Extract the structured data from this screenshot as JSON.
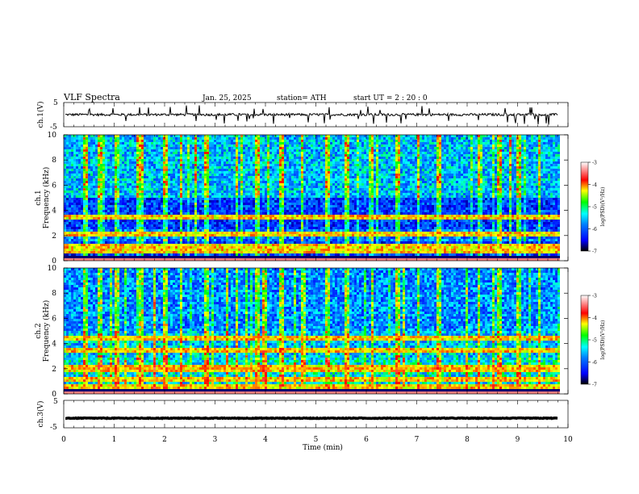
{
  "header": {
    "title": "VLF  Spectra",
    "date": "Jan. 25, 2025",
    "station": "station= ATH",
    "start_ut": "start  UT  =   2  : 20 : 0"
  },
  "chart_data": [
    {
      "type": "line",
      "name": "ch1-waveform",
      "ylabel": "ch.1(V)",
      "yticks": [
        "5",
        "-5"
      ],
      "ylim": [
        -5,
        5
      ],
      "xlim": [
        0,
        9.8
      ],
      "baseline": 0,
      "noise": "small oscillation around 0 with occasional spikes"
    },
    {
      "type": "heatmap",
      "name": "ch1-spectrogram",
      "ylabel": "ch.1\nFrequency  (kHz)",
      "ylabel_lines": [
        "ch.1",
        "Frequency  (kHz)"
      ],
      "yticks": [
        "0",
        "2",
        "4",
        "6",
        "8",
        "10"
      ],
      "ylim": [
        0,
        10
      ],
      "xlim": [
        0,
        9.8
      ],
      "colorbar": {
        "label": "log(PSD)(V²/Hz)",
        "ticks": [
          "-3",
          "-4",
          "-5",
          "-6",
          "-7"
        ],
        "range": [
          -7,
          -3
        ]
      },
      "bands_khz": [
        3.6,
        2.2,
        1.3,
        0.9,
        0.3
      ],
      "spike_times_min": [
        0.4,
        0.7,
        1.0,
        1.5,
        2.0,
        2.3,
        2.8,
        3.4,
        3.8,
        4.3,
        4.7,
        5.2,
        5.6,
        6.1,
        6.6,
        7.0,
        7.4,
        8.2,
        8.6,
        9.0,
        9.4
      ]
    },
    {
      "type": "heatmap",
      "name": "ch2-spectrogram",
      "ylabel": "ch.2\nFrequency  (kHz)",
      "ylabel_lines": [
        "ch.2",
        "Frequency  (kHz)"
      ],
      "yticks": [
        "0",
        "2",
        "4",
        "6",
        "8",
        "10"
      ],
      "ylim": [
        0,
        10
      ],
      "xlim": [
        0,
        9.8
      ],
      "colorbar": {
        "label": "log(PSD)(V²/Hz)",
        "ticks": [
          "-3",
          "-4",
          "-5",
          "-6",
          "-7"
        ],
        "range": [
          -7,
          -3
        ]
      },
      "bands_khz": [
        4.6,
        3.6,
        2.2,
        2.0,
        1.2,
        0.6
      ],
      "spike_times_min": [
        0.4,
        0.7,
        1.0,
        1.5,
        2.0,
        2.3,
        2.8,
        3.4,
        3.8,
        4.3,
        4.7,
        5.2,
        5.6,
        6.1,
        6.6,
        7.0,
        7.4,
        8.2,
        8.6,
        9.0,
        9.4
      ]
    },
    {
      "type": "line",
      "name": "ch3-waveform",
      "ylabel": "ch.3(V)",
      "yticks": [
        "5",
        "-5"
      ],
      "ylim": [
        -5,
        5
      ],
      "xlim": [
        0,
        9.8
      ],
      "baseline": -1.5,
      "noise": "flat thick trace"
    }
  ],
  "xaxis": {
    "label": "Time  (min)",
    "ticks": [
      "0",
      "1",
      "2",
      "3",
      "4",
      "5",
      "6",
      "7",
      "8",
      "9",
      "10"
    ],
    "range": [
      0,
      10
    ]
  },
  "colors": {
    "spectro_scale": [
      "#000080",
      "#0000ff",
      "#0080ff",
      "#00ffff",
      "#80ff80",
      "#ffff00",
      "#ff8000",
      "#ff0000",
      "#ffffff"
    ],
    "waveform": "#000000"
  }
}
